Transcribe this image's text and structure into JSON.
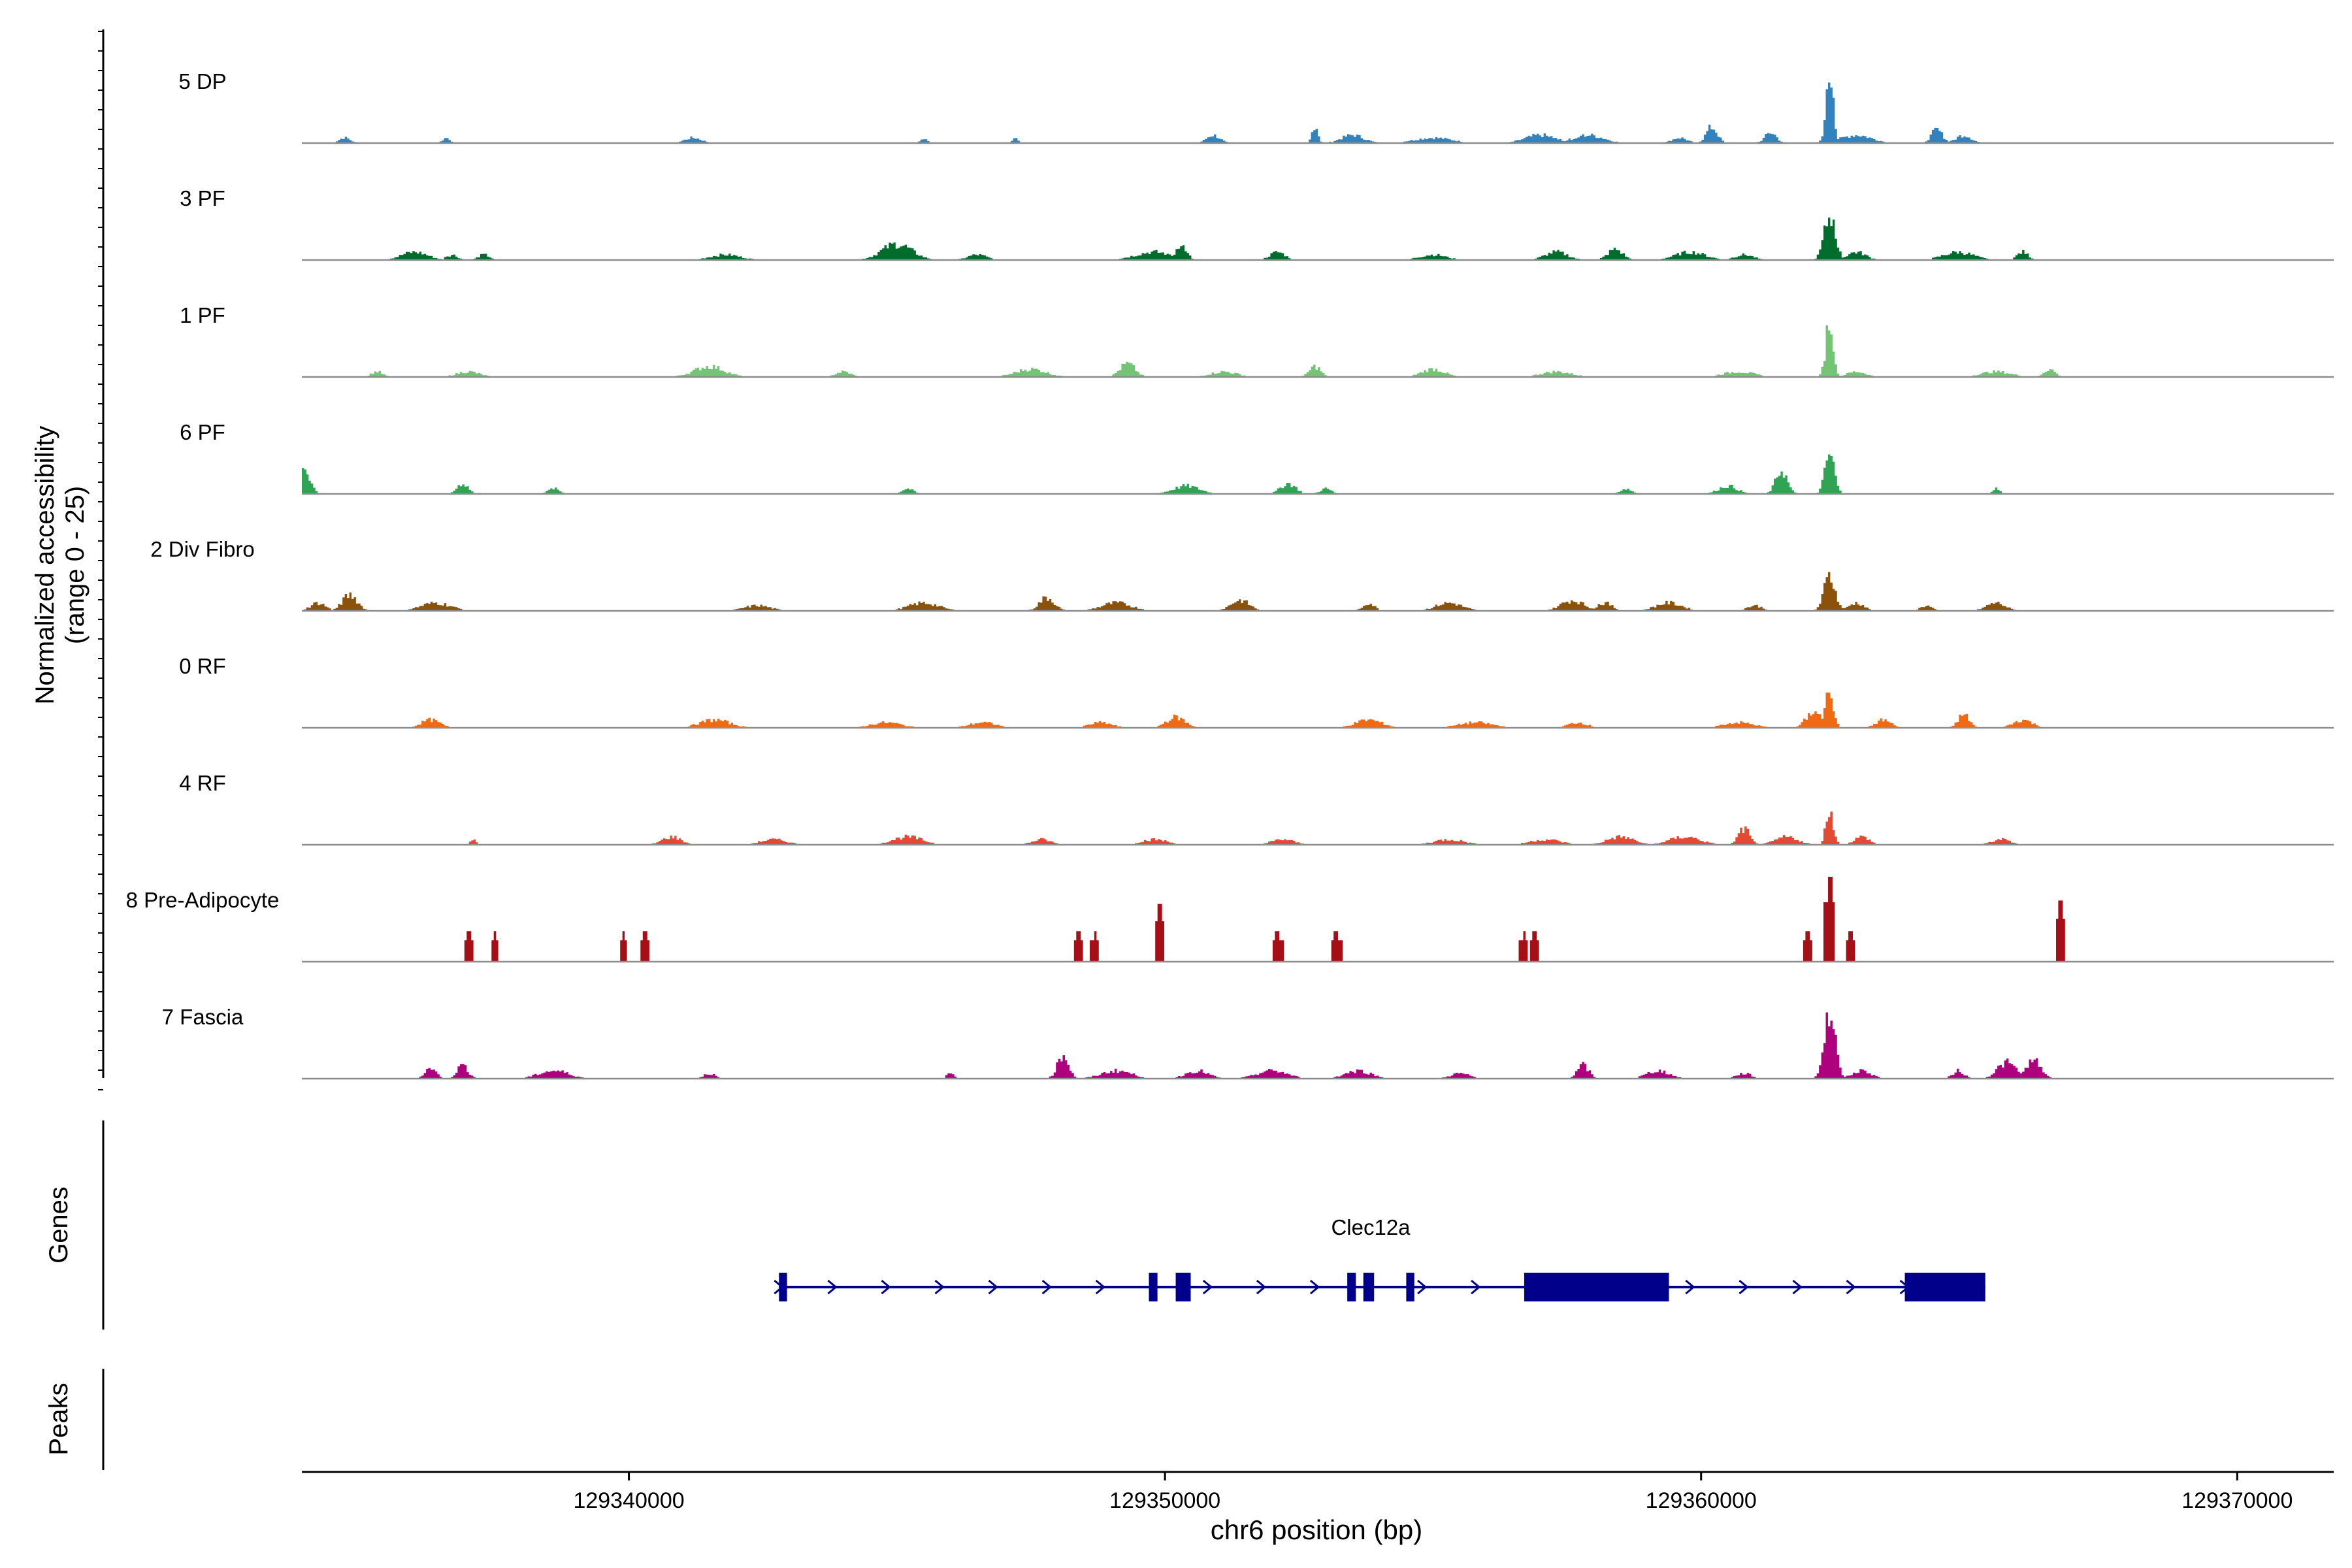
{
  "chart_data": {
    "type": "area",
    "title": "",
    "ylabel_line1": "Normalized accessibility",
    "ylabel_line2": "(range 0 - 25)",
    "xlabel": "chr6 position (bp)",
    "y_range": [
      0,
      25
    ],
    "x_range": [
      129333900,
      129371800
    ],
    "x_ticks": [
      {
        "value": 129340000,
        "label": "129340000"
      },
      {
        "value": 129350000,
        "label": "129350000"
      },
      {
        "value": 129360000,
        "label": "129360000"
      },
      {
        "value": 129370000,
        "label": "129370000"
      }
    ],
    "tracks": [
      {
        "name": "5 DP",
        "color": "#3182bd",
        "peaks": [
          [
            129362400,
            24,
            200
          ],
          [
            129360200,
            6,
            300
          ],
          [
            129352800,
            7,
            150
          ],
          [
            129357000,
            3,
            800
          ],
          [
            129350900,
            3,
            350
          ],
          [
            129362900,
            3,
            800
          ],
          [
            129347200,
            2,
            150
          ],
          [
            129334700,
            2,
            300
          ],
          [
            129336600,
            2,
            200
          ],
          [
            129341200,
            2,
            450
          ],
          [
            129345500,
            1.5,
            200
          ],
          [
            129353500,
            3,
            600
          ],
          [
            129355000,
            2,
            1000
          ],
          [
            129357900,
            3,
            800
          ],
          [
            129359600,
            2,
            400
          ],
          [
            129364400,
            5,
            300
          ],
          [
            129361300,
            4,
            300
          ],
          [
            129364900,
            3,
            400
          ]
        ]
      },
      {
        "name": "3 PF",
        "color": "#006d2c",
        "peaks": [
          [
            129362400,
            16,
            300
          ],
          [
            129345000,
            6,
            800
          ],
          [
            129336000,
            3,
            700
          ],
          [
            129341800,
            2,
            800
          ],
          [
            129346500,
            2,
            500
          ],
          [
            129349800,
            3,
            1000
          ],
          [
            129350300,
            5,
            300
          ],
          [
            129352100,
            3,
            400
          ],
          [
            129355000,
            2,
            700
          ],
          [
            129357300,
            3,
            600
          ],
          [
            129358400,
            4,
            400
          ],
          [
            129359800,
            3,
            800
          ],
          [
            129360800,
            2,
            500
          ],
          [
            129362900,
            3,
            500
          ],
          [
            129364800,
            3,
            800
          ],
          [
            129366000,
            3,
            300
          ],
          [
            129337300,
            2,
            300
          ],
          [
            129336700,
            2,
            300
          ]
        ]
      },
      {
        "name": "1 PF",
        "color": "#74c476",
        "peaks": [
          [
            129362400,
            22,
            200
          ],
          [
            129349300,
            5,
            400
          ],
          [
            129352800,
            4,
            300
          ],
          [
            129341500,
            4,
            800
          ],
          [
            129347500,
            3,
            800
          ],
          [
            129355000,
            3,
            600
          ],
          [
            129360700,
            2,
            800
          ],
          [
            129366500,
            3,
            300
          ],
          [
            129337000,
            2,
            600
          ],
          [
            129344000,
            2,
            400
          ],
          [
            129351100,
            2,
            700
          ],
          [
            129357300,
            2,
            800
          ],
          [
            129362900,
            2,
            500
          ],
          [
            129365500,
            2,
            800
          ],
          [
            129335300,
            2,
            300
          ]
        ]
      },
      {
        "name": "6 PF",
        "color": "#31a354",
        "peaks": [
          [
            129333900,
            11,
            350
          ],
          [
            129362400,
            15,
            250
          ],
          [
            129361500,
            9,
            300
          ],
          [
            129352300,
            4,
            400
          ],
          [
            129336900,
            4,
            300
          ],
          [
            129345200,
            2,
            300
          ],
          [
            129350400,
            3,
            700
          ],
          [
            129353000,
            2,
            300
          ],
          [
            129358600,
            2,
            300
          ],
          [
            129360500,
            3,
            500
          ],
          [
            129365500,
            2,
            200
          ],
          [
            129338600,
            2,
            300
          ]
        ]
      },
      {
        "name": "2 Div Fibro",
        "color": "#8c510a",
        "peaks": [
          [
            129362400,
            13,
            300
          ],
          [
            129334800,
            6,
            400
          ],
          [
            129336400,
            3,
            800
          ],
          [
            129342400,
            2,
            700
          ],
          [
            129345500,
            3,
            800
          ],
          [
            129347800,
            5,
            400
          ],
          [
            129349100,
            3,
            800
          ],
          [
            129351400,
            4,
            500
          ],
          [
            129355300,
            3,
            700
          ],
          [
            129357600,
            4,
            600
          ],
          [
            129359400,
            3,
            700
          ],
          [
            129361000,
            2,
            400
          ],
          [
            129362900,
            3,
            400
          ],
          [
            129365500,
            3,
            500
          ],
          [
            129334200,
            3,
            400
          ],
          [
            129353800,
            3,
            300
          ],
          [
            129358200,
            3,
            400
          ],
          [
            129364200,
            2,
            300
          ]
        ]
      },
      {
        "name": "0 RF",
        "color": "#f16913",
        "peaks": [
          [
            129362400,
            15,
            200
          ],
          [
            129350200,
            4,
            500
          ],
          [
            129353800,
            3,
            700
          ],
          [
            129364900,
            5,
            300
          ],
          [
            129336300,
            3,
            500
          ],
          [
            129341600,
            3,
            800
          ],
          [
            129344800,
            2,
            800
          ],
          [
            129346600,
            2,
            700
          ],
          [
            129348800,
            2,
            600
          ],
          [
            129355800,
            2,
            900
          ],
          [
            129357700,
            2,
            500
          ],
          [
            129360700,
            2,
            800
          ],
          [
            129362100,
            6,
            400
          ],
          [
            129363400,
            3,
            400
          ],
          [
            129366000,
            3,
            500
          ]
        ]
      },
      {
        "name": "4 RF",
        "color": "#e34a33",
        "peaks": [
          [
            129362400,
            13,
            200
          ],
          [
            129360800,
            6,
            300
          ],
          [
            129358500,
            3,
            700
          ],
          [
            129337100,
            2,
            150
          ],
          [
            129340800,
            3,
            500
          ],
          [
            129342700,
            2,
            700
          ],
          [
            129345200,
            3,
            800
          ],
          [
            129347700,
            2,
            500
          ],
          [
            129349800,
            2,
            700
          ],
          [
            129352200,
            2,
            600
          ],
          [
            129355300,
            2,
            800
          ],
          [
            129357100,
            2,
            800
          ],
          [
            129359700,
            3,
            800
          ],
          [
            129361600,
            3,
            600
          ],
          [
            129363000,
            3,
            400
          ],
          [
            129365600,
            2,
            500
          ]
        ]
      },
      {
        "name": "8 Pre-Adipocyte",
        "color": "#a50f15",
        "peaks": [
          [
            129337000,
            9,
            150
          ],
          [
            129337500,
            9,
            150
          ],
          [
            129339900,
            9,
            150
          ],
          [
            129340300,
            9,
            150
          ],
          [
            129348400,
            9,
            150
          ],
          [
            129348700,
            9,
            150
          ],
          [
            129349900,
            17,
            150
          ],
          [
            129352100,
            9,
            200
          ],
          [
            129353200,
            9,
            200
          ],
          [
            129356700,
            9,
            150
          ],
          [
            129356900,
            9,
            150
          ],
          [
            129362000,
            9,
            150
          ],
          [
            129362400,
            25,
            180
          ],
          [
            129362800,
            9,
            150
          ],
          [
            129366700,
            18,
            150
          ]
        ]
      },
      {
        "name": "7 Fascia",
        "color": "#ae017e",
        "peaks": [
          [
            129362400,
            24,
            300
          ],
          [
            129348100,
            9,
            300
          ],
          [
            129336900,
            5,
            300
          ],
          [
            129336300,
            4,
            300
          ],
          [
            129338600,
            3,
            800
          ],
          [
            129341500,
            2,
            300
          ],
          [
            129346000,
            2,
            200
          ],
          [
            129349100,
            3,
            800
          ],
          [
            129350600,
            3,
            600
          ],
          [
            129352000,
            3,
            800
          ],
          [
            129353600,
            3,
            700
          ],
          [
            129355500,
            2,
            500
          ],
          [
            129357800,
            5,
            300
          ],
          [
            129359200,
            3,
            600
          ],
          [
            129360800,
            2,
            400
          ],
          [
            129363000,
            3,
            500
          ],
          [
            129365700,
            6,
            500
          ],
          [
            129366200,
            7,
            400
          ],
          [
            129364800,
            3,
            300
          ]
        ]
      }
    ],
    "gene": {
      "name": "Clec12a",
      "strand": "+",
      "line": [
        129342800,
        129365300
      ],
      "exons": [
        [
          129342800,
          129342950
        ],
        [
          129349700,
          129349860
        ],
        [
          129350200,
          129350480
        ],
        [
          129353400,
          129353560
        ],
        [
          129353700,
          129353900
        ],
        [
          129354500,
          129354650
        ],
        [
          129356700,
          129359400
        ],
        [
          129363800,
          129365300
        ]
      ]
    },
    "gene_panel_label": "Genes",
    "peaks_panel_label": "Peaks"
  }
}
